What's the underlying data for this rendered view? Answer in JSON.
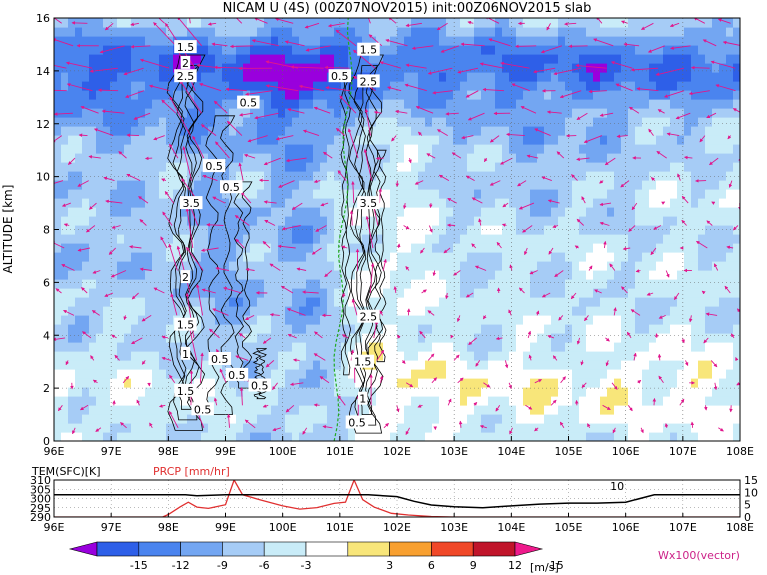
{
  "title": "NICAM U (4S) (00Z07NOV2015) init:00Z06NOV2015 slab",
  "chart_data": {
    "type": "heatmap",
    "main": {
      "variable": "U",
      "ylabel": "ALTITUDE [km]",
      "xlim": [
        96,
        108
      ],
      "ylim": [
        0,
        16
      ],
      "x_ticks": [
        "96E",
        "97E",
        "98E",
        "99E",
        "100E",
        "101E",
        "102E",
        "103E",
        "104E",
        "105E",
        "106E",
        "107E",
        "108E"
      ],
      "y_ticks": [
        "0",
        "2",
        "4",
        "6",
        "8",
        "10",
        "12",
        "14",
        "16"
      ],
      "grid": true,
      "contour_labels": [
        {
          "text": "1.5",
          "x": 98.3,
          "y": 14.9
        },
        {
          "text": "2",
          "x": 98.3,
          "y": 14.3
        },
        {
          "text": "2.5",
          "x": 98.3,
          "y": 13.8
        },
        {
          "text": "0.5",
          "x": 99.4,
          "y": 12.8
        },
        {
          "text": "0.5",
          "x": 98.8,
          "y": 10.4
        },
        {
          "text": "3.5",
          "x": 98.4,
          "y": 9.0
        },
        {
          "text": "0.5",
          "x": 99.1,
          "y": 9.6
        },
        {
          "text": "2",
          "x": 98.3,
          "y": 6.2
        },
        {
          "text": "1.5",
          "x": 98.3,
          "y": 4.4
        },
        {
          "text": "1",
          "x": 98.3,
          "y": 3.3
        },
        {
          "text": "0.5",
          "x": 98.9,
          "y": 3.1
        },
        {
          "text": "0.5",
          "x": 99.2,
          "y": 2.5
        },
        {
          "text": "0.5",
          "x": 99.6,
          "y": 2.1
        },
        {
          "text": "1.5",
          "x": 98.3,
          "y": 1.9
        },
        {
          "text": "0.5",
          "x": 98.6,
          "y": 1.2
        },
        {
          "text": "1.5",
          "x": 101.5,
          "y": 14.8
        },
        {
          "text": "0.5",
          "x": 101.0,
          "y": 13.8
        },
        {
          "text": "2.5",
          "x": 101.5,
          "y": 13.6
        },
        {
          "text": "3.5",
          "x": 101.5,
          "y": 9.0
        },
        {
          "text": "2.5",
          "x": 101.5,
          "y": 4.7
        },
        {
          "text": "1.5",
          "x": 101.4,
          "y": 3.0
        },
        {
          "text": "1",
          "x": 101.4,
          "y": 1.6
        },
        {
          "text": "0.5",
          "x": 101.3,
          "y": 0.7
        }
      ]
    },
    "surface": {
      "tem_label": "TEM(SFC)[K]",
      "prcp_label": "PRCP [mm/hr]",
      "tem_ticks": [
        "310",
        "305",
        "300",
        "295",
        "290"
      ],
      "prcp_ticks": [
        "15",
        "10",
        "5",
        "0"
      ],
      "tem_ylim": [
        290,
        310
      ],
      "prcp_ylim": [
        0,
        15
      ],
      "x_ticks": [
        "96E",
        "97E",
        "98E",
        "99E",
        "100E",
        "101E",
        "102E",
        "103E",
        "104E",
        "105E",
        "106E",
        "107E",
        "108E"
      ],
      "tem_series": {
        "x": [
          96,
          97,
          98,
          98.3,
          98.5,
          99,
          99.5,
          100,
          100.5,
          101,
          101.5,
          102,
          102.3,
          102.6,
          103,
          103.5,
          104,
          104.5,
          105,
          105.5,
          106,
          106.5,
          107,
          108
        ],
        "values": [
          302,
          302,
          302,
          302,
          301.5,
          302,
          302,
          302,
          302,
          302,
          302,
          301,
          298.5,
          296.5,
          295.5,
          295,
          296,
          297,
          297.5,
          297.5,
          298,
          302,
          302,
          302
        ]
      },
      "prcp_series": {
        "x": [
          96,
          97,
          97.9,
          98,
          98.2,
          98.35,
          98.5,
          98.7,
          99,
          99.15,
          99.3,
          99.6,
          100,
          100.3,
          100.6,
          100.9,
          101.1,
          101.25,
          101.4,
          101.6,
          101.9,
          102.2,
          102.6,
          103,
          104,
          105,
          106,
          107,
          108
        ],
        "values": [
          0,
          0,
          0,
          1,
          4,
          6,
          4,
          3.5,
          5,
          15,
          9,
          7,
          4.5,
          3.2,
          3.8,
          5.5,
          6,
          15,
          7,
          4,
          1.5,
          0.8,
          0.2,
          0,
          0,
          0,
          0,
          0,
          0
        ]
      },
      "annotation": {
        "text": "10",
        "x": 105.85
      }
    },
    "colorbar": {
      "ticks": [
        "-15",
        "-12",
        "-9",
        "-6",
        "-3",
        "3",
        "6",
        "9",
        "12",
        "15"
      ],
      "unit": "[m/s]",
      "colors": [
        "#9900dd",
        "#2e5fe8",
        "#4a84ef",
        "#73a6f2",
        "#a6ccf6",
        "#c9ecf8",
        "#ffffff",
        "#f8e67a",
        "#f8a030",
        "#f04828",
        "#c0142a",
        "#ee1a8c"
      ]
    },
    "vector_label": "Wx100(vector)"
  }
}
